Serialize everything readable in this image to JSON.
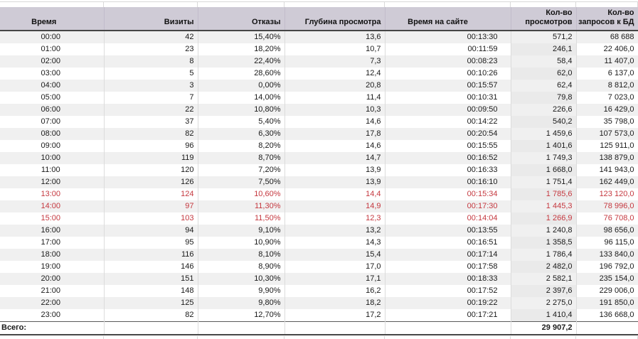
{
  "table": {
    "columns": [
      {
        "key": "time",
        "label": "Время"
      },
      {
        "key": "visits",
        "label": "Визиты"
      },
      {
        "key": "bounces",
        "label": "Отказы"
      },
      {
        "key": "depth",
        "label": "Глубина просмотра"
      },
      {
        "key": "time-on-site",
        "label": "Время на сайте"
      },
      {
        "key": "views",
        "label": "Кол-во просмотров"
      },
      {
        "key": "db-requests",
        "label": "Кол-во запросов к БД"
      }
    ],
    "rows": [
      {
        "alert": false,
        "cells": [
          "00:00",
          "42",
          "15,40%",
          "13,6",
          "00:13:30",
          "571,2",
          "68 688"
        ]
      },
      {
        "alert": false,
        "cells": [
          "01:00",
          "23",
          "18,20%",
          "10,7",
          "00:11:59",
          "246,1",
          "22 406,0"
        ]
      },
      {
        "alert": false,
        "cells": [
          "02:00",
          "8",
          "22,40%",
          "7,3",
          "00:08:23",
          "58,4",
          "11 407,0"
        ]
      },
      {
        "alert": false,
        "cells": [
          "03:00",
          "5",
          "28,60%",
          "12,4",
          "00:10:26",
          "62,0",
          "6 137,0"
        ]
      },
      {
        "alert": false,
        "cells": [
          "04:00",
          "3",
          "0,00%",
          "20,8",
          "00:15:57",
          "62,4",
          "8 812,0"
        ]
      },
      {
        "alert": false,
        "cells": [
          "05:00",
          "7",
          "14,00%",
          "11,4",
          "00:10:31",
          "79,8",
          "7 023,0"
        ]
      },
      {
        "alert": false,
        "cells": [
          "06:00",
          "22",
          "10,80%",
          "10,3",
          "00:09:50",
          "226,6",
          "16 429,0"
        ]
      },
      {
        "alert": false,
        "cells": [
          "07:00",
          "37",
          "5,40%",
          "14,6",
          "00:14:22",
          "540,2",
          "35 798,0"
        ]
      },
      {
        "alert": false,
        "cells": [
          "08:00",
          "82",
          "6,30%",
          "17,8",
          "00:20:54",
          "1 459,6",
          "107 573,0"
        ]
      },
      {
        "alert": false,
        "cells": [
          "09:00",
          "96",
          "8,20%",
          "14,6",
          "00:15:55",
          "1 401,6",
          "125 911,0"
        ]
      },
      {
        "alert": false,
        "cells": [
          "10:00",
          "119",
          "8,70%",
          "14,7",
          "00:16:52",
          "1 749,3",
          "138 879,0"
        ]
      },
      {
        "alert": false,
        "cells": [
          "11:00",
          "120",
          "7,20%",
          "13,9",
          "00:16:33",
          "1 668,0",
          "141 943,0"
        ]
      },
      {
        "alert": false,
        "cells": [
          "12:00",
          "126",
          "7,50%",
          "13,9",
          "00:16:10",
          "1 751,4",
          "162 449,0"
        ]
      },
      {
        "alert": true,
        "cells": [
          "13:00",
          "124",
          "10,60%",
          "14,4",
          "00:15:34",
          "1 785,6",
          "123 120,0"
        ]
      },
      {
        "alert": true,
        "cells": [
          "14:00",
          "97",
          "11,30%",
          "14,9",
          "00:17:30",
          "1 445,3",
          "78 996,0"
        ]
      },
      {
        "alert": true,
        "cells": [
          "15:00",
          "103",
          "11,50%",
          "12,3",
          "00:14:04",
          "1 266,9",
          "76 708,0"
        ]
      },
      {
        "alert": false,
        "cells": [
          "16:00",
          "94",
          "9,10%",
          "13,2",
          "00:13:55",
          "1 240,8",
          "98 656,0"
        ]
      },
      {
        "alert": false,
        "cells": [
          "17:00",
          "95",
          "10,90%",
          "14,3",
          "00:16:51",
          "1 358,5",
          "96 115,0"
        ]
      },
      {
        "alert": false,
        "cells": [
          "18:00",
          "116",
          "8,10%",
          "15,4",
          "00:17:14",
          "1 786,4",
          "133 840,0"
        ]
      },
      {
        "alert": false,
        "cells": [
          "19:00",
          "146",
          "8,90%",
          "17,0",
          "00:17:58",
          "2 482,0",
          "196 792,0"
        ]
      },
      {
        "alert": false,
        "cells": [
          "20:00",
          "151",
          "10,30%",
          "17,1",
          "00:18:33",
          "2 582,1",
          "235 154,0"
        ]
      },
      {
        "alert": false,
        "cells": [
          "21:00",
          "148",
          "9,90%",
          "16,2",
          "00:17:52",
          "2 397,6",
          "229 006,0"
        ]
      },
      {
        "alert": false,
        "cells": [
          "22:00",
          "125",
          "9,80%",
          "18,2",
          "00:19:22",
          "2 275,0",
          "191 850,0"
        ]
      },
      {
        "alert": false,
        "cells": [
          "23:00",
          "82",
          "12,70%",
          "17,2",
          "00:17:21",
          "1 410,4",
          "136 668,0"
        ]
      }
    ],
    "total": {
      "label": "Всего:",
      "views_total": "29 907,2"
    }
  },
  "colors": {
    "header_bg": "#cfcbd6",
    "stripe_bg": "#f0f0f0",
    "views_column_bg": "#eaeaea",
    "alert_text": "#c5383f"
  }
}
